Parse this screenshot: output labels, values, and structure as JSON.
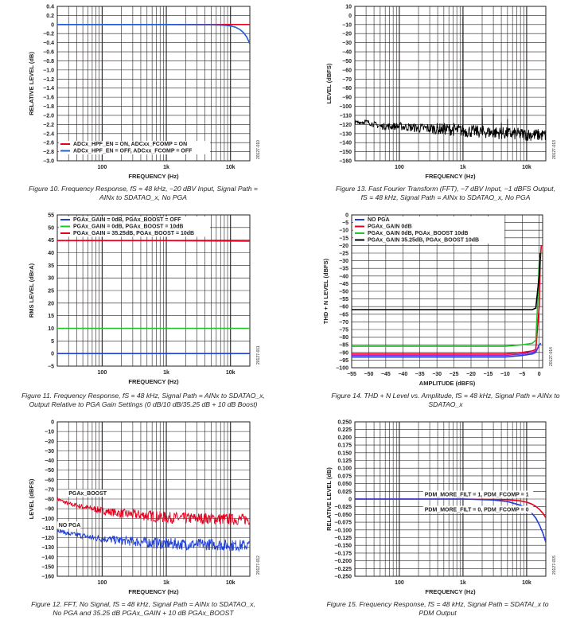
{
  "captions": [
    {
      "line1": "Figure 10. Frequency Response, fS = 48 kHz, −20 dBV Input, Signal Path =",
      "line2": "AINx to SDATAO_x, No PGA"
    },
    {
      "line1": "Figure 11. Frequency Response, fS = 48 kHz, Signal Path = AINx to SDATAO_x,",
      "line2": "Output Relative to PGA Gain Settings (0 dB/10 dB/35.25 dB + 10 dB Boost)"
    },
    {
      "line1": "Figure 12. FFT, No Signal, fS = 48 kHz, Signal Path = AINx to SDATAO_x,",
      "line2": "No PGA and 35.25 dB PGAx_GAIN + 10 dB PGAx_BOOST"
    },
    {
      "line1": "Figure 13. Fast Fourier Transform (FFT), −7 dBV Input, −1 dBFS Output,",
      "line2": "fS = 48 kHz, Signal Path = AINx to SDATAO_x, No PGA"
    },
    {
      "line1": "Figure 14. THD + N Level vs. Amplitude, fS = 48 kHz, Signal Path = AINx to",
      "line2": "SDATAO_x"
    },
    {
      "line1": "Figure 15. Frequency Response, fS = 48 kHz, Signal Path = SDATAI_x to",
      "line2": "PDM Output"
    }
  ],
  "chart_data": [
    {
      "id": "fig10",
      "type": "line",
      "xscale": "log",
      "xlabel": "FREQUENCY (Hz)",
      "ylabel": "RELATIVE LEVEL (dB)",
      "xlim": [
        20,
        20000
      ],
      "ylim": [
        -3.0,
        0.4
      ],
      "xticks": [
        {
          "v": 100,
          "label": "100"
        },
        {
          "v": 1000,
          "label": "1k"
        },
        {
          "v": 10000,
          "label": "10k"
        }
      ],
      "yticks": [
        0.4,
        0.2,
        0,
        -0.2,
        -0.4,
        -0.6,
        -0.8,
        -1.0,
        -1.2,
        -1.4,
        -1.6,
        -1.8,
        -2.0,
        -2.2,
        -2.4,
        -2.6,
        -2.8,
        -3.0
      ],
      "ytick_labels": [
        "0.4",
        "0.2",
        "0",
        "−0.2",
        "−0.4",
        "−0.6",
        "−0.8",
        "−1.0",
        "−1.2",
        "−1.4",
        "−1.6",
        "−1.8",
        "−2.0",
        "−2.2",
        "−2.4",
        "−2.6",
        "−2.8",
        "−3.0"
      ],
      "legend": "bottom-left",
      "series": [
        {
          "name": "ADCx_HPF_EN = ON, ADCxx_FCOMP = ON",
          "color": "#e8001f",
          "x": [
            20,
            100,
            1000,
            5000,
            10000,
            20000
          ],
          "y": [
            0,
            0,
            0,
            0,
            0,
            0
          ]
        },
        {
          "name": "ADCx_HPF_EN = OFF, ADCxx_FCOMP = OFF",
          "color": "#1f5fd6",
          "x": [
            20,
            1000,
            5000,
            8000,
            10000,
            12000,
            14000,
            16000,
            18000,
            20000
          ],
          "y": [
            0,
            0,
            -0.005,
            -0.015,
            -0.03,
            -0.06,
            -0.11,
            -0.18,
            -0.28,
            -0.42
          ]
        }
      ],
      "note": "20127-010"
    },
    {
      "id": "fig11",
      "type": "line",
      "xscale": "log",
      "xlabel": "FREQUENCY (Hz)",
      "ylabel": "RMS LEVEL (dBrA)",
      "xlim": [
        20,
        20000
      ],
      "ylim": [
        -5,
        55
      ],
      "xticks": [
        {
          "v": 100,
          "label": "100"
        },
        {
          "v": 1000,
          "label": "1k"
        },
        {
          "v": 10000,
          "label": "10k"
        }
      ],
      "yticks": [
        55,
        50,
        45,
        40,
        35,
        30,
        25,
        20,
        15,
        10,
        5,
        0,
        -5
      ],
      "ytick_labels": [
        "55",
        "50",
        "45",
        "40",
        "35",
        "30",
        "25",
        "20",
        "15",
        "10",
        "5",
        "0",
        "−5"
      ],
      "legend": "top-left",
      "series": [
        {
          "name": "PGAx_GAIN = 0dB, PGAx_BOOST = OFF",
          "color": "#1f3fd6",
          "x": [
            20,
            1000,
            20000
          ],
          "y": [
            0,
            0,
            0
          ]
        },
        {
          "name": "PGAx_GAIN = 0dB, PGAx_BOOST = 10dB",
          "color": "#22c42a",
          "x": [
            20,
            1000,
            20000
          ],
          "y": [
            10,
            10,
            10
          ]
        },
        {
          "name": "PGAx_GAIN = 35.25dB, PGAx_BOOST = 10dB",
          "color": "#e8001f",
          "x": [
            20,
            1000,
            20000
          ],
          "y": [
            44.8,
            44.8,
            44.6
          ]
        }
      ],
      "note": "20127-011"
    },
    {
      "id": "fig12",
      "type": "line",
      "xscale": "log",
      "xlabel": "FREQUENCY (Hz)",
      "ylabel": "LEVEL (dBFS)",
      "xlim": [
        20,
        20000
      ],
      "ylim": [
        -160,
        0
      ],
      "xticks": [
        {
          "v": 100,
          "label": "100"
        },
        {
          "v": 1000,
          "label": "1k"
        },
        {
          "v": 10000,
          "label": "10k"
        }
      ],
      "yticks": [
        0,
        -10,
        -20,
        -30,
        -40,
        -50,
        -60,
        -70,
        -80,
        -90,
        -100,
        -110,
        -120,
        -130,
        -140,
        -150,
        -160
      ],
      "ytick_labels": [
        "0",
        "−10",
        "−20",
        "−30",
        "−40",
        "−50",
        "−60",
        "−70",
        "−80",
        "−90",
        "−100",
        "−110",
        "−120",
        "−130",
        "−140",
        "−150",
        "−160"
      ],
      "series": [
        {
          "name": "PGAx_BOOST",
          "color": "#e8001f",
          "x": [
            20,
            30,
            50,
            70,
            100,
            200,
            500,
            1000,
            2000,
            5000,
            10000,
            20000
          ],
          "y": [
            -80,
            -85,
            -88,
            -90,
            -92,
            -95,
            -97,
            -99,
            -100,
            -100,
            -101,
            -101
          ],
          "spread": 6
        },
        {
          "name": "NO PGA",
          "color": "#1f3fd6",
          "x": [
            20,
            30,
            50,
            70,
            100,
            200,
            500,
            1000,
            2000,
            5000,
            10000,
            20000
          ],
          "y": [
            -112,
            -116,
            -118,
            -120,
            -121,
            -123,
            -125,
            -126,
            -127,
            -127,
            -128,
            -128
          ],
          "spread": 6
        }
      ],
      "annotations": [
        {
          "text": "PGAx_BOOST",
          "x": 30,
          "y": -76
        },
        {
          "text": "NO PGA",
          "x": 21,
          "y": -109
        }
      ],
      "note": "20127-012"
    },
    {
      "id": "fig13",
      "type": "line",
      "xscale": "log",
      "xlabel": "FREQUENCY (Hz)",
      "ylabel": "LEVEL (dBFS)",
      "xlim": [
        20,
        20000
      ],
      "ylim": [
        -160,
        10
      ],
      "xticks": [
        {
          "v": 100,
          "label": "100"
        },
        {
          "v": 1000,
          "label": "1k"
        },
        {
          "v": 10000,
          "label": "10k"
        }
      ],
      "yticks": [
        10,
        0,
        -10,
        -20,
        -30,
        -40,
        -50,
        -60,
        -70,
        -80,
        -90,
        -100,
        -110,
        -120,
        -130,
        -140,
        -150,
        -160
      ],
      "ytick_labels": [
        "10",
        "0",
        "−10",
        "−20",
        "−30",
        "−40",
        "−50",
        "−60",
        "−70",
        "−80",
        "−90",
        "−100",
        "−110",
        "−120",
        "−130",
        "−140",
        "−150",
        "−160"
      ],
      "series": [
        {
          "name": "",
          "color": "#000000",
          "x": [
            20,
            30,
            50,
            100,
            200,
            500,
            800,
            1000,
            2000,
            5000,
            10000,
            20000
          ],
          "y": [
            -118,
            -117,
            -122,
            -122,
            -124,
            -125,
            -126,
            -127,
            -128,
            -130,
            -131,
            -132
          ],
          "spread": 7,
          "spikes": [
            {
              "x": 1000,
              "y": -1
            },
            {
              "x": 2000,
              "y": -102
            },
            {
              "x": 3000,
              "y": -108
            },
            {
              "x": 4000,
              "y": -118
            },
            {
              "x": 5000,
              "y": -114
            }
          ]
        }
      ],
      "note": "20127-013"
    },
    {
      "id": "fig14",
      "type": "line",
      "xlabel": "AMPLITUDE (dBFS)",
      "ylabel": "THD + N LEVEL (dBFS)",
      "xlim": [
        -55,
        1
      ],
      "ylim": [
        -100,
        0
      ],
      "xticks": [
        {
          "v": -55,
          "label": "−55"
        },
        {
          "v": -50,
          "label": "−50"
        },
        {
          "v": -45,
          "label": "−45"
        },
        {
          "v": -40,
          "label": "−40"
        },
        {
          "v": -35,
          "label": "−35"
        },
        {
          "v": -30,
          "label": "−30"
        },
        {
          "v": -25,
          "label": "−25"
        },
        {
          "v": -20,
          "label": "−20"
        },
        {
          "v": -15,
          "label": "−15"
        },
        {
          "v": -10,
          "label": "−10"
        },
        {
          "v": -5,
          "label": "−5"
        },
        {
          "v": 0,
          "label": "0"
        }
      ],
      "yticks": [
        0,
        -5,
        -10,
        -15,
        -20,
        -25,
        -30,
        -35,
        -40,
        -45,
        -50,
        -55,
        -60,
        -65,
        -70,
        -75,
        -80,
        -85,
        -90,
        -95,
        -100
      ],
      "ytick_labels": [
        "0",
        "−5",
        "−10",
        "−15",
        "−20",
        "−25",
        "−30",
        "−35",
        "−40",
        "−45",
        "−50",
        "−55",
        "−60",
        "−65",
        "−70",
        "−75",
        "−80",
        "−85",
        "−90",
        "−95",
        "−100"
      ],
      "legend": "top-left",
      "series": [
        {
          "name": "NO PGA",
          "color": "#1f3fd6",
          "x": [
            -55,
            -40,
            -20,
            -10,
            -5,
            -2,
            -1,
            0,
            0.5
          ],
          "y": [
            -93,
            -93,
            -93,
            -93,
            -92,
            -91,
            -90,
            -85,
            -84
          ]
        },
        {
          "name": "PGAx_GAIN 0dB",
          "color": "#e8001f",
          "x": [
            -55,
            -40,
            -20,
            -10,
            -5,
            -2,
            -1,
            0,
            0.3,
            0.6
          ],
          "y": [
            -91,
            -91,
            -91,
            -91,
            -90,
            -89,
            -88,
            -60,
            -30,
            -20
          ]
        },
        {
          "name": "PGAx_GAIN 0dB, PGAx_BOOST 10dB",
          "color": "#22c42a",
          "x": [
            -55,
            -40,
            -20,
            -10,
            -5,
            -2,
            -1,
            -0.5,
            0,
            0.5
          ],
          "y": [
            -86,
            -86,
            -86,
            -86,
            -85,
            -84,
            -82,
            -60,
            -30,
            -25
          ]
        },
        {
          "name": "PGAx_GAIN 35.25dB, PGAx_BOOST 10dB",
          "color": "#000000",
          "x": [
            -55,
            -40,
            -20,
            -10,
            -5,
            -2,
            -1,
            0,
            0.3
          ],
          "y": [
            -62,
            -62,
            -62,
            -62,
            -62,
            -62,
            -61,
            -40,
            -25
          ]
        },
        {
          "name": "",
          "color": "#8a2be2",
          "x": [
            -55,
            -40,
            -20,
            -10,
            -5,
            -2,
            -1,
            0
          ],
          "y": [
            -92,
            -92,
            -92,
            -92,
            -91,
            -90,
            -89,
            -86
          ]
        }
      ],
      "note": "20127-014"
    },
    {
      "id": "fig15",
      "type": "line",
      "xscale": "log",
      "xlabel": "FREQUENCY (Hz)",
      "ylabel": "RELATIVE LEVEL (dB)",
      "xlim": [
        20,
        20000
      ],
      "ylim": [
        -0.25,
        0.25
      ],
      "xticks": [
        {
          "v": 100,
          "label": "100"
        },
        {
          "v": 1000,
          "label": "1k"
        },
        {
          "v": 10000,
          "label": "10k"
        }
      ],
      "yticks": [
        0.25,
        0.225,
        0.2,
        0.175,
        0.15,
        0.125,
        0.1,
        0.075,
        0.05,
        0.025,
        0,
        -0.025,
        -0.05,
        -0.075,
        -0.1,
        -0.125,
        -0.15,
        -0.175,
        -0.2,
        -0.225,
        -0.25
      ],
      "ytick_labels": [
        "0.250",
        "0.225",
        "0.200",
        "0.175",
        "0.150",
        "0.125",
        "0.100",
        "0.075",
        "0.050",
        "0.025",
        "0",
        "−0.025",
        "−0.050",
        "−0.075",
        "−0.100",
        "−0.125",
        "−0.150",
        "−0.175",
        "−0.200",
        "−0.225",
        "−0.250"
      ],
      "series": [
        {
          "name": "PDM_MORE_FILT = 1, PDM_FCOMP = 1",
          "color": "#e8001f",
          "x": [
            20,
            1000,
            5000,
            8000,
            10000,
            12000,
            14000,
            16000,
            18000,
            20000
          ],
          "y": [
            0,
            0,
            -0.002,
            -0.006,
            -0.01,
            -0.016,
            -0.024,
            -0.034,
            -0.046,
            -0.06
          ]
        },
        {
          "name": "PDM_MORE_FILT = 0, PDM_FCOMP = 0",
          "color": "#1f3fd6",
          "x": [
            20,
            1000,
            3000,
            5000,
            8000,
            10000,
            12000,
            14000,
            16000,
            18000,
            20000
          ],
          "y": [
            0,
            0,
            -0.003,
            -0.008,
            -0.02,
            -0.03,
            -0.045,
            -0.062,
            -0.085,
            -0.11,
            -0.14
          ]
        }
      ],
      "annotations": [
        {
          "text": "PDM_MORE_FILT = 1, PDM_FCOMP = 1",
          "x": 250,
          "y": 0.009
        },
        {
          "text": "PDM_MORE_FILT = 0, PDM_FCOMP = 0",
          "x": 250,
          "y": -0.04
        }
      ],
      "note": "20127-015"
    }
  ]
}
